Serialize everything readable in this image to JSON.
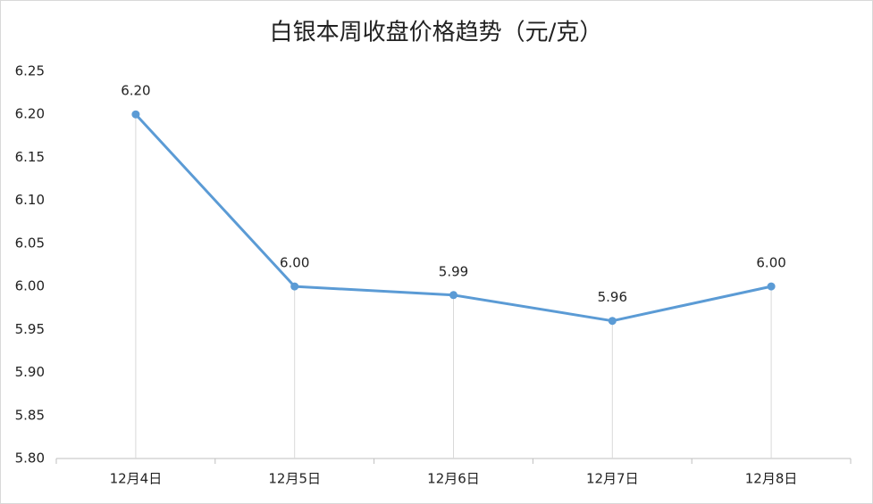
{
  "chart_data": {
    "type": "line",
    "title": "白银本周收盘价格趋势（元/克）",
    "categories": [
      "12月4日",
      "12月5日",
      "12月6日",
      "12月7日",
      "12月8日"
    ],
    "values": [
      6.2,
      6.0,
      5.99,
      5.96,
      6.0
    ],
    "value_labels": [
      "6.20",
      "6.00",
      "5.99",
      "5.96",
      "6.00"
    ],
    "color": "#5b9bd5",
    "ylim": [
      5.8,
      6.25
    ],
    "yticks": [
      {
        "value": 5.8,
        "label": "5.80"
      },
      5.85,
      {
        "value": 5.9,
        "label": "5.90"
      },
      5.95,
      {
        "value": 6.0,
        "label": "6.00"
      },
      6.05,
      {
        "value": 6.1,
        "label": "6.10"
      },
      6.15,
      {
        "value": 6.2,
        "label": "6.20"
      },
      6.25
    ],
    "drop_lines": true
  }
}
